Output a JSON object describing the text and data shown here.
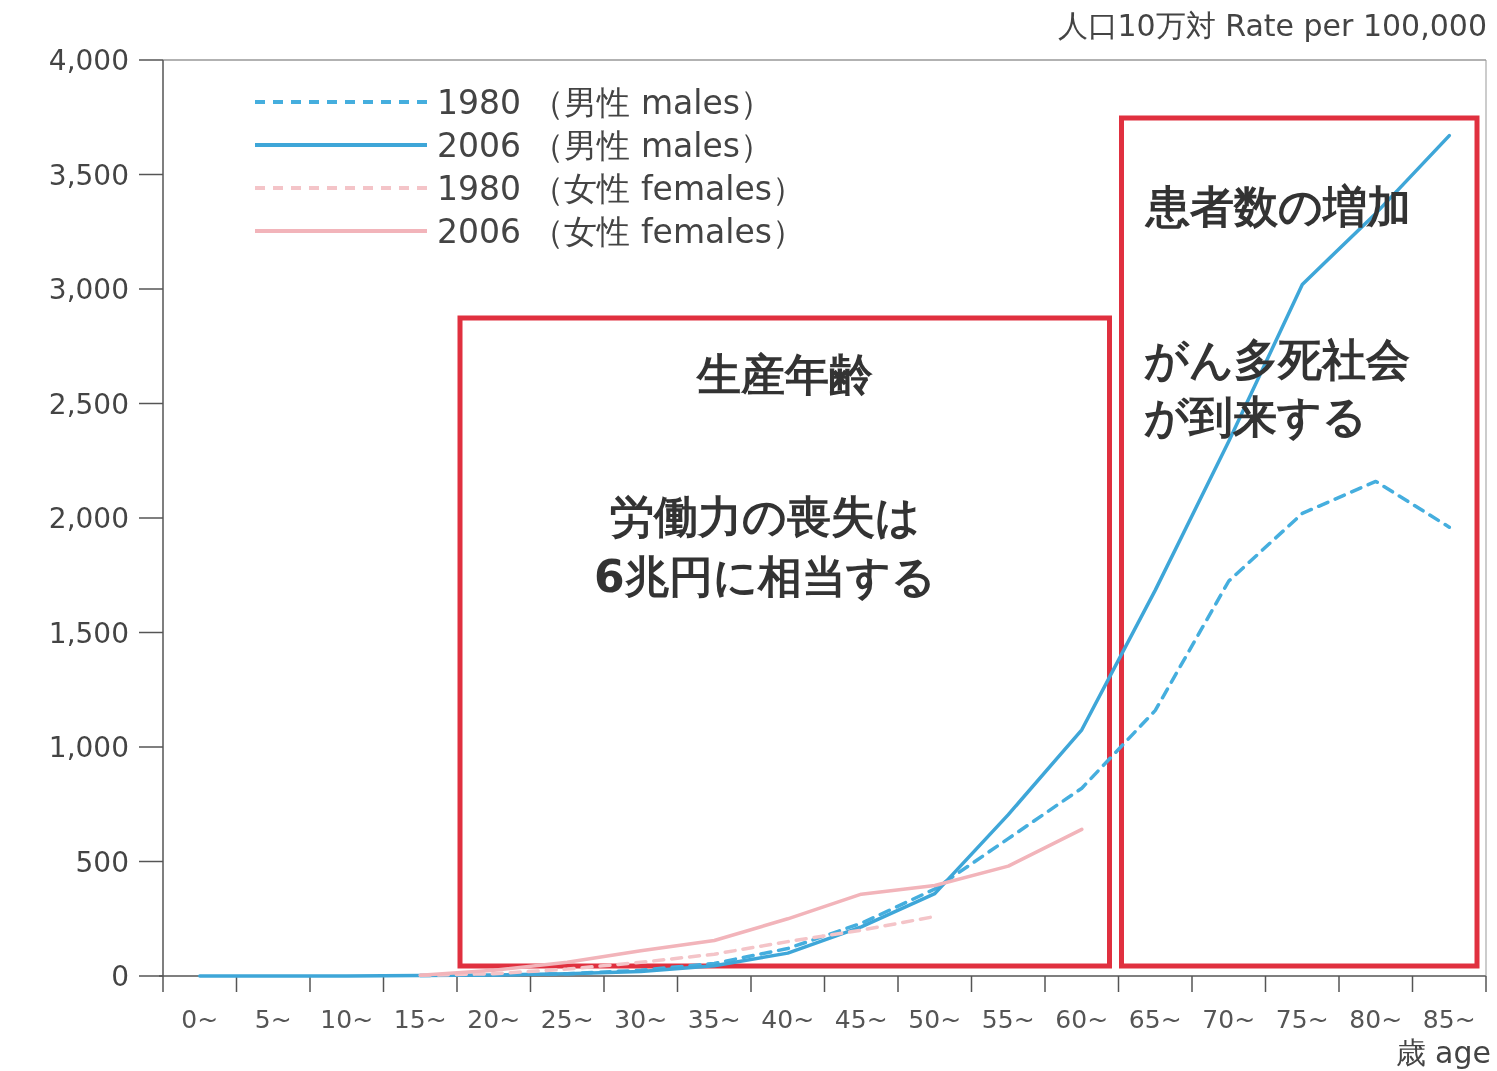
{
  "chart_data": {
    "type": "line",
    "ylabel": "人口10万対 Rate per 100,000",
    "xlabel": "歳 age",
    "categories": [
      "0~",
      "5~",
      "10~",
      "15~",
      "20~",
      "25~",
      "30~",
      "35~",
      "40~",
      "45~",
      "50~",
      "55~",
      "60~",
      "65~",
      "70~",
      "75~",
      "80~",
      "85~"
    ],
    "ylim": [
      0,
      4000
    ],
    "yticks": [
      {
        "value": 0,
        "label": "0"
      },
      {
        "value": 500,
        "label": "500"
      },
      {
        "value": 1000,
        "label": "1,000"
      },
      {
        "value": 1500,
        "label": "1,500"
      },
      {
        "value": 2000,
        "label": "2,000"
      },
      {
        "value": 2500,
        "label": "2,500"
      },
      {
        "value": 3000,
        "label": "3,000"
      },
      {
        "value": 3500,
        "label": "3,500"
      },
      {
        "value": 4000,
        "label": "4,000"
      }
    ],
    "grid": false,
    "legend": "top left",
    "marker": "none",
    "series": [
      {
        "name": "1980 （男性 males）",
        "color": "#45aede",
        "line_style": "dashed",
        "values": [
          null,
          null,
          null,
          2,
          5,
          10,
          25,
          55,
          120,
          230,
          380,
          600,
          820,
          1160,
          1725,
          2020,
          2160,
          1960
        ]
      },
      {
        "name": "2006 （男性 males）",
        "color": "#3ea6d8",
        "line_style": "solid",
        "values": [
          0,
          0,
          0,
          2,
          5,
          10,
          20,
          45,
          100,
          215,
          360,
          705,
          1075,
          1685,
          2335,
          3020,
          3330,
          3670
        ]
      },
      {
        "name": "1980 （女性 females）",
        "color": "#f4c4c8",
        "line_style": "dashed",
        "values": [
          null,
          null,
          null,
          3,
          10,
          30,
          60,
          95,
          150,
          200,
          260,
          null,
          null,
          null,
          null,
          null,
          null,
          null
        ]
      },
      {
        "name": "2006 （女性 females）",
        "color": "#f2b4ba",
        "line_style": "solid",
        "values": [
          null,
          null,
          null,
          3,
          25,
          60,
          110,
          155,
          250,
          357,
          395,
          480,
          640,
          null,
          null,
          null,
          null,
          null
        ]
      }
    ],
    "annotations": [
      "生産年齢",
      "労働力の喪失は",
      "6兆円に相当する",
      "患者数の増加",
      "がん多死社会",
      "が到来する"
    ]
  }
}
